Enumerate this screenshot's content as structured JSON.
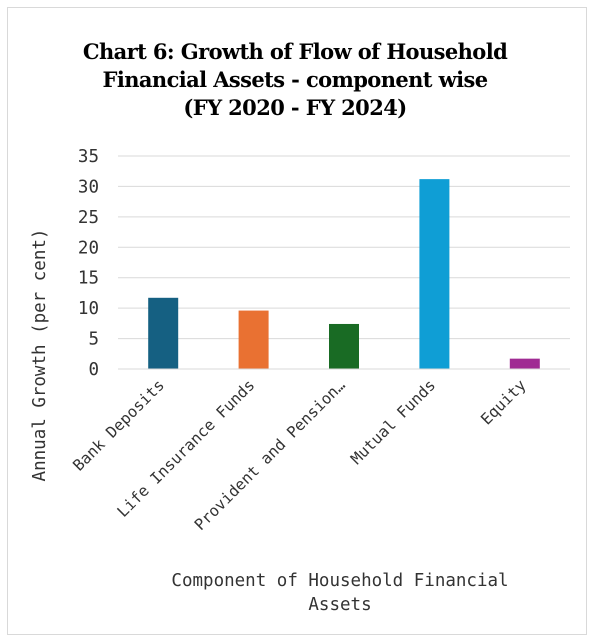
{
  "chart_data": {
    "type": "bar",
    "title_lines": [
      "Chart 6: Growth of Flow of Household",
      "Financial Assets - component wise",
      "(FY 2020 - FY 2024)"
    ],
    "xlabel_lines": [
      "Component of Household Financial",
      "Assets"
    ],
    "ylabel": "Annual Growth (per cent)",
    "categories": [
      "Bank Deposits",
      "Life Insurance Funds",
      "Provident and Pension…",
      "Mutual Funds",
      "Equity"
    ],
    "values": [
      11.7,
      9.6,
      7.4,
      31.2,
      1.7
    ],
    "colors": [
      "#156082",
      "#e97132",
      "#196b24",
      "#0f9ed5",
      "#a02b93"
    ],
    "ylim": [
      0,
      35
    ],
    "yticks": [
      0,
      5,
      10,
      15,
      20,
      25,
      30,
      35
    ],
    "grid": true,
    "legend": "none"
  }
}
